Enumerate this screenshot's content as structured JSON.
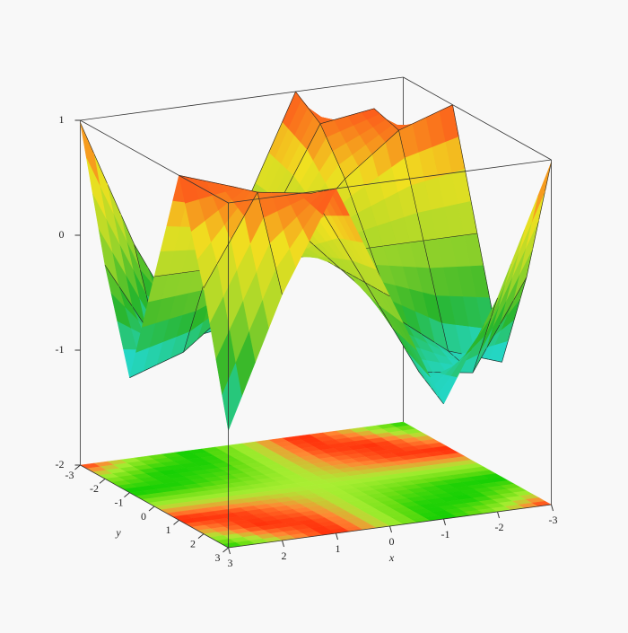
{
  "chart_data": {
    "type": "surface3d",
    "x_label": "x",
    "y_label": "y",
    "x": [
      -3,
      -2,
      -1,
      0,
      1,
      2,
      3
    ],
    "y": [
      -3,
      -2,
      -1,
      0,
      1,
      2,
      3
    ],
    "z": [
      [
        -0.98,
        0.14,
        1.0,
        0,
        -1.0,
        -0.14,
        0.98
      ],
      [
        0.14,
        0.91,
        0.84,
        0,
        -0.84,
        -0.91,
        -0.14
      ],
      [
        1.0,
        0.84,
        0.48,
        0,
        -0.48,
        -0.84,
        -1.0
      ],
      [
        0,
        0,
        0,
        0,
        0,
        0,
        0
      ],
      [
        -1.0,
        -0.84,
        -0.48,
        0,
        0.48,
        0.84,
        1.0
      ],
      [
        -0.14,
        -0.91,
        -0.84,
        0,
        0.84,
        0.91,
        0.14
      ],
      [
        0.98,
        -0.14,
        -1.0,
        0,
        1.0,
        0.14,
        -0.98
      ]
    ],
    "xlim": [
      -3,
      3
    ],
    "ylim": [
      -3,
      3
    ],
    "zlim": [
      -2,
      1
    ],
    "xticks": [
      3,
      2,
      1,
      0,
      -1,
      -2,
      -3
    ],
    "yticks": [
      -3,
      -2,
      -1,
      0,
      1,
      2,
      3
    ],
    "zticks": [
      1,
      0,
      -1,
      -2
    ],
    "surface_colors": [
      "#22e0f0",
      "#2ab52a",
      "#a8d82a",
      "#f0e020",
      "#ff3a1a"
    ],
    "floor_colors": [
      "#00cc00",
      "#66dd11",
      "#aaee33",
      "#ff8833",
      "#ff1a00"
    ],
    "contour_floor": true
  }
}
